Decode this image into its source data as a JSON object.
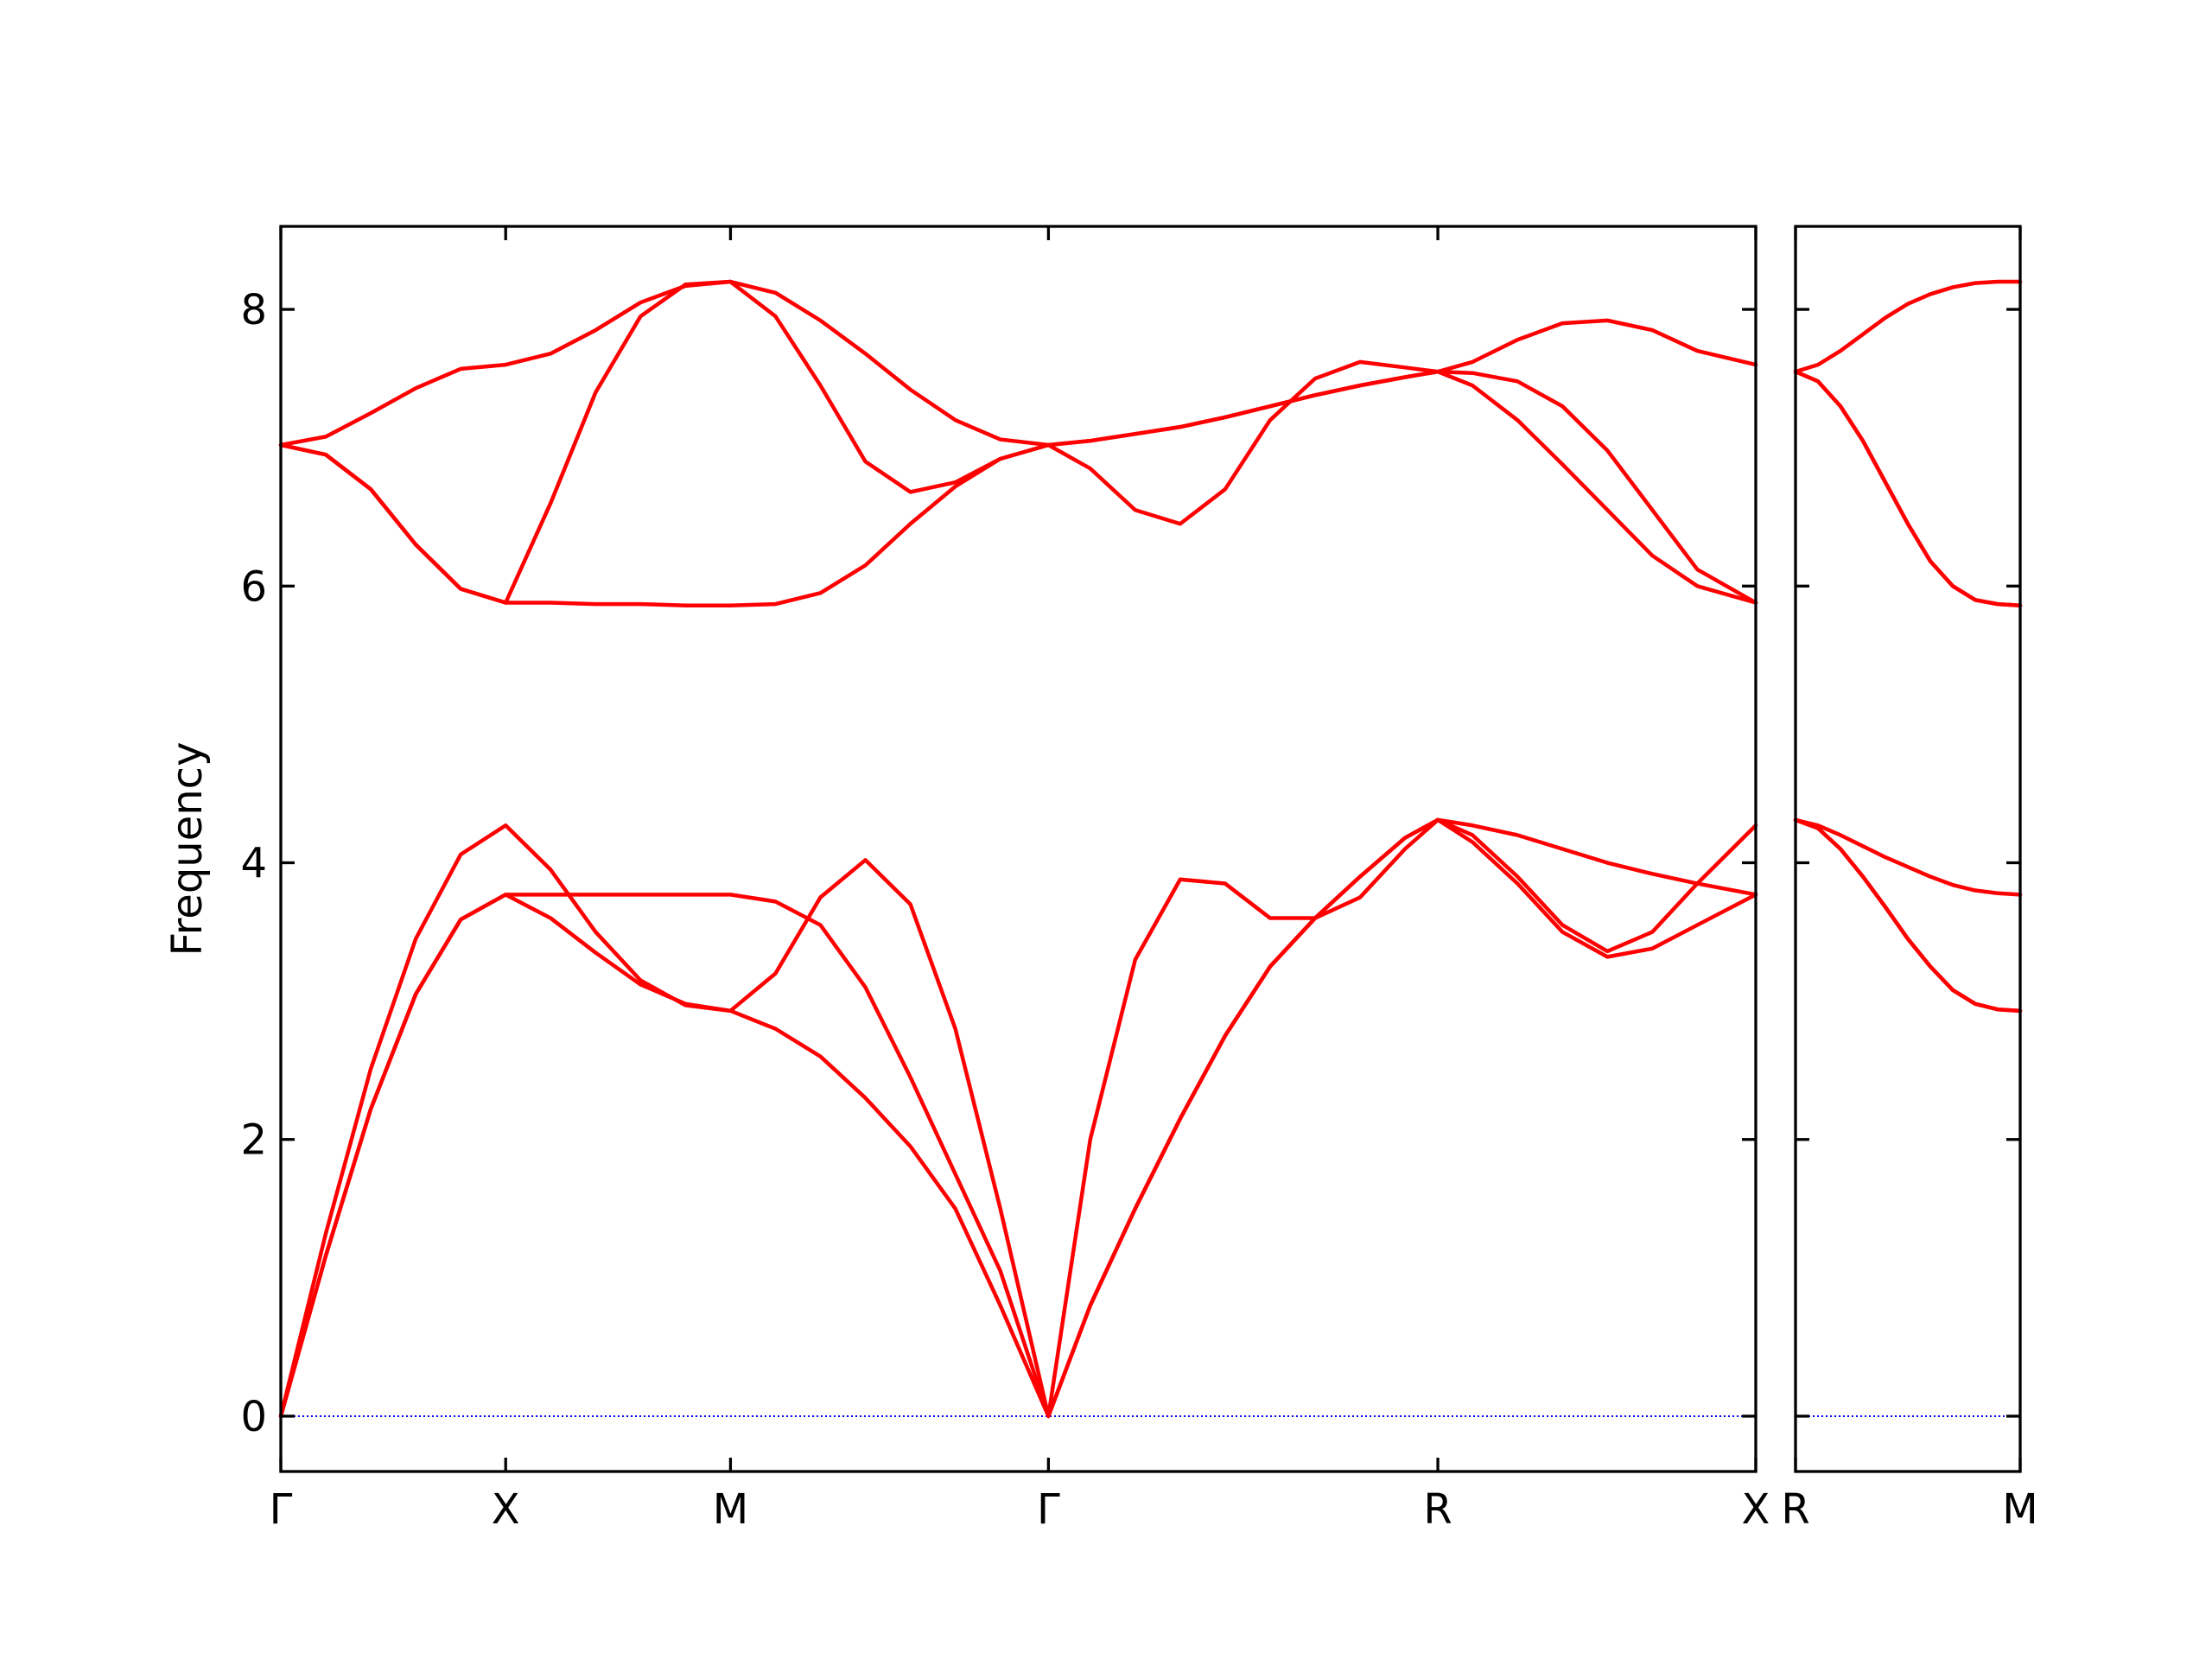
{
  "chart_data": [
    {
      "type": "line",
      "ylabel": "Frequency",
      "x": [
        0,
        0.1,
        0.2,
        0.3,
        0.4,
        0.5,
        0.6,
        0.7,
        0.8,
        0.9,
        1.0,
        1.1,
        1.2,
        1.3,
        1.4,
        1.5,
        1.6,
        1.707,
        1.8,
        1.9,
        2.0,
        2.1,
        2.2,
        2.3,
        2.4,
        2.5,
        2.573,
        2.65,
        2.75,
        2.85,
        2.95,
        3.05,
        3.15,
        3.28
      ],
      "series": [
        {
          "color": "#ff0000",
          "values": [
            0,
            1.16,
            2.22,
            3.05,
            3.59,
            3.77,
            3.6,
            3.35,
            3.12,
            2.98,
            2.93,
            2.8,
            2.6,
            2.3,
            1.95,
            1.5,
            0.8,
            0,
            0.8,
            1.5,
            2.15,
            2.75,
            3.25,
            3.6,
            3.9,
            4.18,
            4.31,
            4.15,
            3.85,
            3.5,
            3.32,
            3.38,
            3.55,
            3.77
          ]
        },
        {
          "color": "#ff0000",
          "values": [
            0,
            1.16,
            2.22,
            3.05,
            3.59,
            3.77,
            3.77,
            3.77,
            3.77,
            3.77,
            3.77,
            3.72,
            3.55,
            3.1,
            2.45,
            1.75,
            1.05,
            0,
            2.0,
            3.3,
            3.88,
            3.85,
            3.6,
            3.6,
            3.75,
            4.1,
            4.31,
            4.2,
            3.9,
            3.55,
            3.36,
            3.5,
            3.85,
            4.27
          ]
        },
        {
          "color": "#ff0000",
          "values": [
            0,
            1.32,
            2.51,
            3.45,
            4.06,
            4.27,
            3.95,
            3.5,
            3.15,
            2.97,
            2.93,
            3.2,
            3.75,
            4.02,
            3.7,
            2.8,
            1.5,
            0,
            0.8,
            1.5,
            2.15,
            2.75,
            3.25,
            3.6,
            3.9,
            4.18,
            4.31,
            4.27,
            4.2,
            4.1,
            4.0,
            3.92,
            3.85,
            3.77
          ]
        },
        {
          "color": "#ff0000",
          "values": [
            7.02,
            6.95,
            6.7,
            6.3,
            5.98,
            5.88,
            5.88,
            5.87,
            5.87,
            5.86,
            5.86,
            5.87,
            5.95,
            6.15,
            6.45,
            6.72,
            6.92,
            7.02,
            6.85,
            6.55,
            6.45,
            6.7,
            7.2,
            7.5,
            7.62,
            7.58,
            7.55,
            7.45,
            7.2,
            6.88,
            6.55,
            6.22,
            6.0,
            5.88
          ]
        },
        {
          "color": "#ff0000",
          "values": [
            7.02,
            6.95,
            6.7,
            6.3,
            5.98,
            5.88,
            6.6,
            7.4,
            7.95,
            8.18,
            8.2,
            7.95,
            7.45,
            6.9,
            6.68,
            6.75,
            6.92,
            7.02,
            7.05,
            7.1,
            7.15,
            7.22,
            7.3,
            7.38,
            7.45,
            7.51,
            7.55,
            7.54,
            7.48,
            7.3,
            6.98,
            6.55,
            6.12,
            5.88
          ]
        },
        {
          "color": "#ff0000",
          "values": [
            7.02,
            7.08,
            7.25,
            7.43,
            7.57,
            7.6,
            7.68,
            7.85,
            8.05,
            8.17,
            8.2,
            8.12,
            7.92,
            7.68,
            7.42,
            7.2,
            7.06,
            7.02,
            7.05,
            7.1,
            7.15,
            7.22,
            7.3,
            7.38,
            7.45,
            7.51,
            7.55,
            7.62,
            7.78,
            7.9,
            7.92,
            7.85,
            7.7,
            7.6
          ]
        }
      ],
      "xlim": [
        0,
        3.28
      ],
      "ylim": [
        -0.4,
        8.6
      ],
      "xticks": [
        {
          "value": 0,
          "label": "Γ"
        },
        {
          "value": 0.5,
          "label": "X"
        },
        {
          "value": 1.0,
          "label": "M"
        },
        {
          "value": 1.707,
          "label": "Γ"
        },
        {
          "value": 2.573,
          "label": "R"
        },
        {
          "value": 3.28,
          "label": "X"
        }
      ],
      "yticks": [
        0,
        2,
        4,
        6,
        8
      ],
      "show_ytick_labels": true,
      "hline": 0,
      "hline_color": "#0000ff"
    },
    {
      "type": "line",
      "x": [
        3.28,
        3.33,
        3.38,
        3.43,
        3.48,
        3.53,
        3.58,
        3.63,
        3.68,
        3.73,
        3.78
      ],
      "series": [
        {
          "color": "#ff0000",
          "values": [
            4.31,
            4.25,
            4.1,
            3.9,
            3.68,
            3.45,
            3.25,
            3.08,
            2.98,
            2.94,
            2.93
          ]
        },
        {
          "color": "#ff0000",
          "values": [
            4.31,
            4.25,
            4.1,
            3.9,
            3.68,
            3.45,
            3.25,
            3.08,
            2.98,
            2.94,
            2.93
          ]
        },
        {
          "color": "#ff0000",
          "values": [
            4.31,
            4.27,
            4.2,
            4.12,
            4.04,
            3.97,
            3.9,
            3.84,
            3.8,
            3.78,
            3.77
          ]
        },
        {
          "color": "#ff0000",
          "values": [
            7.55,
            7.48,
            7.3,
            7.05,
            6.75,
            6.45,
            6.18,
            6.0,
            5.9,
            5.87,
            5.86
          ]
        },
        {
          "color": "#ff0000",
          "values": [
            7.55,
            7.48,
            7.3,
            7.05,
            6.75,
            6.45,
            6.18,
            6.0,
            5.9,
            5.87,
            5.86
          ]
        },
        {
          "color": "#ff0000",
          "values": [
            7.55,
            7.6,
            7.7,
            7.82,
            7.94,
            8.04,
            8.11,
            8.16,
            8.19,
            8.2,
            8.2
          ]
        }
      ],
      "xlim": [
        3.28,
        3.78
      ],
      "ylim": [
        -0.4,
        8.6
      ],
      "xticks": [
        {
          "value": 3.28,
          "label": "R"
        },
        {
          "value": 3.78,
          "label": "M"
        }
      ],
      "yticks": [
        0,
        2,
        4,
        6,
        8
      ],
      "show_ytick_labels": false,
      "hline": 0,
      "hline_color": "#0000ff"
    }
  ]
}
